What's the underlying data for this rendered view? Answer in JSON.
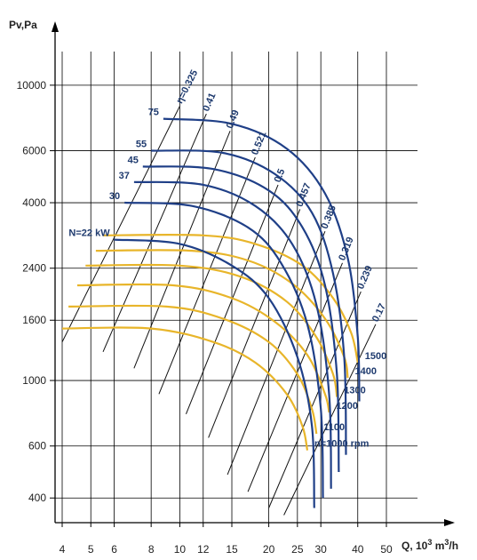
{
  "chart_data": {
    "type": "line",
    "xlabel": "Q, 10",
    "xlabel_sup": "3",
    "xlabel_unit": " m",
    "xlabel_unit_sup": "3",
    "xlabel_tail": "/h",
    "ylabel": "Pv,Pa",
    "x_scale": "log",
    "y_scale": "log",
    "xlim": [
      4,
      50
    ],
    "ylim": [
      330,
      13000
    ],
    "x_ticks": [
      4,
      5,
      6,
      8,
      10,
      12,
      15,
      20,
      25,
      30,
      40,
      50
    ],
    "y_ticks": [
      400,
      600,
      1000,
      1600,
      2400,
      4000,
      6000,
      10000
    ],
    "grid": true,
    "colors": {
      "power": "#1f3f87",
      "speed": "#e8b52a",
      "efficiency": "#111111",
      "labels": "#1e3a6e"
    },
    "power_series": [
      {
        "name": "N=22 kW",
        "points": [
          [
            6.0,
            3000
          ],
          [
            10.0,
            2900
          ],
          [
            15.0,
            2450
          ],
          [
            20.0,
            1900
          ],
          [
            25.0,
            1200
          ],
          [
            28.0,
            700
          ],
          [
            28.5,
            370
          ]
        ]
      },
      {
        "name": "30",
        "points": [
          [
            6.5,
            4000
          ],
          [
            11.0,
            3900
          ],
          [
            17.0,
            3300
          ],
          [
            22.0,
            2500
          ],
          [
            27.0,
            1550
          ],
          [
            30.0,
            800
          ],
          [
            30.5,
            400
          ]
        ]
      },
      {
        "name": "37",
        "points": [
          [
            7.0,
            4700
          ],
          [
            12.0,
            4600
          ],
          [
            18.0,
            3900
          ],
          [
            24.0,
            2900
          ],
          [
            29.0,
            1800
          ],
          [
            32.0,
            900
          ],
          [
            32.5,
            430
          ]
        ]
      },
      {
        "name": "45",
        "points": [
          [
            7.5,
            5300
          ],
          [
            13.0,
            5200
          ],
          [
            20.0,
            4400
          ],
          [
            26.0,
            3300
          ],
          [
            31.0,
            2100
          ],
          [
            34.0,
            1050
          ],
          [
            34.5,
            490
          ]
        ]
      },
      {
        "name": "55",
        "points": [
          [
            8.0,
            6000
          ],
          [
            14.0,
            5900
          ],
          [
            21.0,
            5000
          ],
          [
            28.0,
            3700
          ],
          [
            33.0,
            2300
          ],
          [
            36.0,
            1200
          ],
          [
            36.5,
            560
          ]
        ]
      },
      {
        "name": "75",
        "points": [
          [
            8.8,
            7700
          ],
          [
            15.0,
            7400
          ],
          [
            23.0,
            6100
          ],
          [
            31.0,
            4300
          ],
          [
            37.0,
            2600
          ],
          [
            40.0,
            1400
          ],
          [
            40.5,
            850
          ]
        ]
      }
    ],
    "speed_series": [
      {
        "name": "n=1000 rpm",
        "points": [
          [
            4.0,
            1500
          ],
          [
            8.0,
            1500
          ],
          [
            13.0,
            1350
          ],
          [
            18.0,
            1150
          ],
          [
            23.0,
            900
          ],
          [
            26.0,
            700
          ],
          [
            27.0,
            580
          ]
        ]
      },
      {
        "name": "1100",
        "points": [
          [
            4.2,
            1780
          ],
          [
            9.0,
            1780
          ],
          [
            14.0,
            1620
          ],
          [
            20.0,
            1350
          ],
          [
            25.0,
            1050
          ],
          [
            28.0,
            800
          ],
          [
            29.0,
            660
          ]
        ]
      },
      {
        "name": "1200",
        "points": [
          [
            4.5,
            2100
          ],
          [
            9.5,
            2100
          ],
          [
            15.0,
            1900
          ],
          [
            21.0,
            1580
          ],
          [
            27.0,
            1220
          ],
          [
            31.0,
            900
          ],
          [
            32.0,
            780
          ]
        ]
      },
      {
        "name": "1300",
        "points": [
          [
            4.8,
            2450
          ],
          [
            10.0,
            2450
          ],
          [
            16.0,
            2250
          ],
          [
            23.0,
            1850
          ],
          [
            29.0,
            1400
          ],
          [
            33.0,
            1050
          ],
          [
            34.0,
            880
          ]
        ]
      },
      {
        "name": "1400",
        "points": [
          [
            5.2,
            2750
          ],
          [
            11.0,
            2750
          ],
          [
            17.0,
            2550
          ],
          [
            24.0,
            2130
          ],
          [
            31.0,
            1620
          ],
          [
            36.0,
            1200
          ],
          [
            37.0,
            1020
          ]
        ]
      },
      {
        "name": "1500",
        "points": [
          [
            5.5,
            3100
          ],
          [
            12.0,
            3100
          ],
          [
            18.0,
            2900
          ],
          [
            26.0,
            2450
          ],
          [
            33.0,
            1900
          ],
          [
            38.0,
            1450
          ],
          [
            40.0,
            1150
          ]
        ]
      }
    ],
    "efficiency_lines": [
      {
        "name": "η=0.325",
        "from": [
          4.0,
          1350
        ],
        "to": [
          10.0,
          8500
        ]
      },
      {
        "name": "0.41",
        "from": [
          5.5,
          1250
        ],
        "to": [
          12.3,
          8000
        ]
      },
      {
        "name": "0.49",
        "from": [
          7.0,
          1100
        ],
        "to": [
          14.8,
          7000
        ]
      },
      {
        "name": "0.521",
        "from": [
          8.5,
          900
        ],
        "to": [
          18.0,
          5700
        ]
      },
      {
        "name": "0.5",
        "from": [
          10.5,
          770
        ],
        "to": [
          21.5,
          4600
        ]
      },
      {
        "name": "0.457",
        "from": [
          12.5,
          640
        ],
        "to": [
          25.5,
          3800
        ]
      },
      {
        "name": "0.385",
        "from": [
          14.5,
          480
        ],
        "to": [
          31.0,
          3200
        ]
      },
      {
        "name": "0.319",
        "from": [
          17.0,
          420
        ],
        "to": [
          35.5,
          2500
        ]
      },
      {
        "name": "0.239",
        "from": [
          20.0,
          370
        ],
        "to": [
          41.0,
          2000
        ]
      },
      {
        "name": "0.17",
        "from": [
          22.5,
          350
        ],
        "to": [
          46.0,
          1550
        ]
      }
    ]
  }
}
